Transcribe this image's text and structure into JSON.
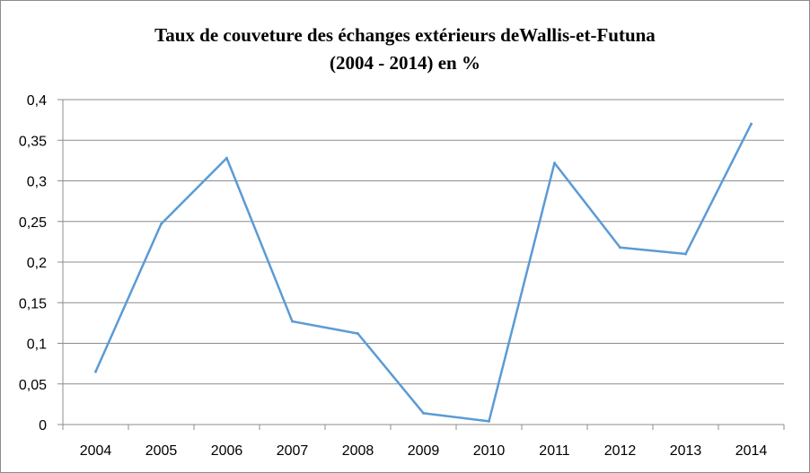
{
  "chart_data": {
    "type": "line",
    "title_lines": [
      "Taux de couveture des échanges extérieurs deWallis-et-Futuna",
      "(2004 - 2014) en %"
    ],
    "xlabel": "",
    "ylabel": "",
    "categories": [
      "2004",
      "2005",
      "2006",
      "2007",
      "2008",
      "2009",
      "2010",
      "2011",
      "2012",
      "2013",
      "2014"
    ],
    "series": [
      {
        "values": [
          0.065,
          0.247,
          0.328,
          0.127,
          0.112,
          0.014,
          0.004,
          0.322,
          0.218,
          0.21,
          0.37
        ],
        "color": "#5b9bd5"
      }
    ],
    "ylim": [
      0,
      0.4
    ],
    "yticks": [
      0,
      0.05,
      0.1,
      0.15,
      0.2,
      0.25,
      0.3,
      0.35,
      0.4
    ],
    "ytick_labels": [
      "0",
      "0,05",
      "0,1",
      "0,15",
      "0,2",
      "0,25",
      "0,3",
      "0,35",
      "0,4"
    ],
    "grid": "horizontal",
    "legend": "none"
  }
}
